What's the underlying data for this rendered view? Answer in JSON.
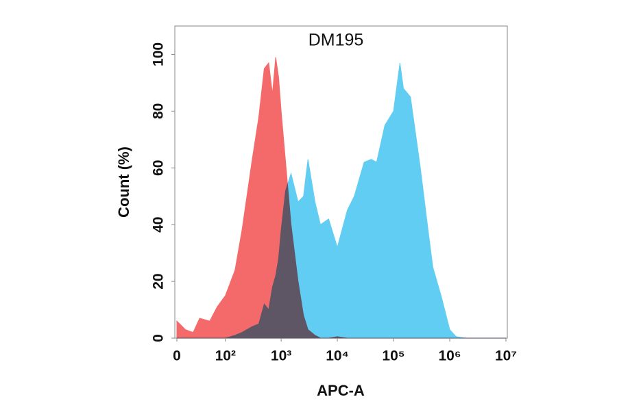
{
  "chart_data": {
    "type": "area",
    "title": "DM195",
    "x_label": "APC-A",
    "y_label": "Count  (%)",
    "xscale": "biexponential",
    "x": [
      0,
      10,
      20,
      30,
      50,
      70,
      100,
      150,
      200,
      300,
      400,
      500,
      600,
      700,
      800,
      900,
      1000,
      1200,
      1500,
      2000,
      2500,
      3000,
      4000,
      5000,
      7000,
      10000,
      15000,
      20000,
      30000,
      40000,
      50000,
      70000,
      100000,
      130000,
      150000,
      200000,
      300000,
      400000,
      500000,
      700000,
      1000000,
      1300000,
      2000000,
      10000000
    ],
    "series": [
      {
        "color": "#62cdf2",
        "values": [
          0,
          0,
          0,
          0,
          0,
          0,
          0,
          1,
          2,
          4,
          5,
          12,
          10,
          18,
          22,
          28,
          38,
          52,
          58,
          48,
          50,
          63,
          48,
          40,
          42,
          32,
          45,
          50,
          62,
          63,
          62,
          75,
          80,
          97,
          88,
          85,
          60,
          40,
          25,
          15,
          3,
          0.5,
          0,
          0
        ]
      },
      {
        "color": "#f46a6a",
        "values": [
          6,
          3,
          2,
          7,
          6,
          11,
          15,
          24,
          38,
          62,
          78,
          95,
          97,
          86,
          99,
          92,
          80,
          62,
          40,
          20,
          8,
          3,
          1,
          0,
          0,
          0.5,
          0,
          0,
          0,
          0,
          0,
          0,
          0,
          0,
          0,
          0,
          0,
          0,
          0,
          0,
          0,
          0,
          0,
          0
        ]
      }
    ],
    "xlim": [
      0,
      10000000
    ],
    "xticks": [
      0,
      {
        "value": 100,
        "label": "10²"
      },
      {
        "value": 1000,
        "label": "10³"
      },
      {
        "value": 10000,
        "label": "10⁴"
      },
      {
        "value": 100000,
        "label": "10⁵"
      },
      {
        "value": 1000000,
        "label": "10⁶"
      },
      {
        "value": 10000000,
        "label": "10⁷"
      }
    ],
    "ylim": [
      0,
      110
    ],
    "yticks": [
      0,
      20,
      40,
      60,
      80,
      100
    ]
  }
}
